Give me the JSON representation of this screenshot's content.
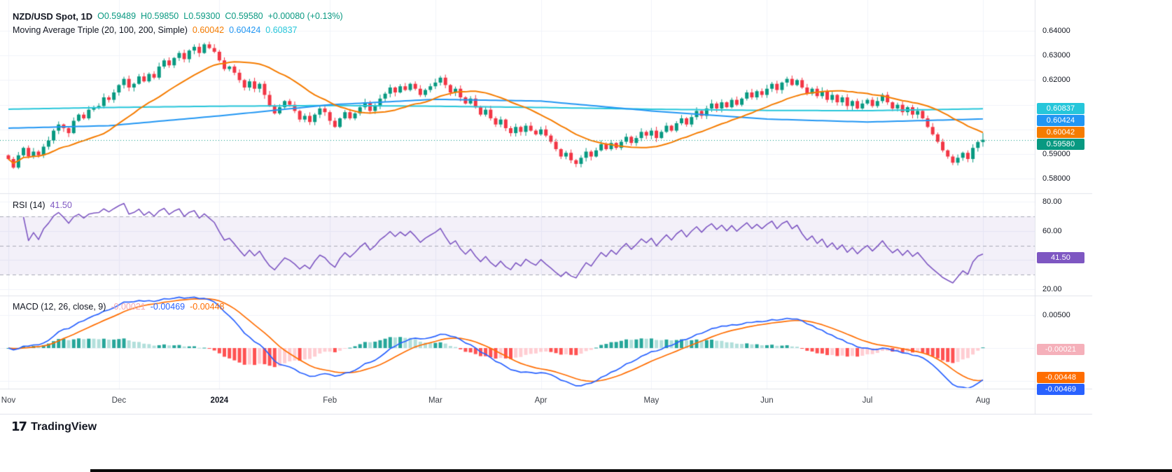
{
  "header": {
    "symbol": "NZD/USD Spot, 1D",
    "o": "O0.59489",
    "h": "H0.59850",
    "l": "L0.59300",
    "c": "C0.59580",
    "change": "+0.00080 (+0.13%)",
    "ma_title": "Moving Average Triple (20, 100, 200, Simple)",
    "ma20": "0.60042",
    "ma100": "0.60424",
    "ma200": "0.60837"
  },
  "rsi_pane": {
    "title": "RSI (14)",
    "value": "41.50"
  },
  "macd_pane": {
    "title": "MACD (12, 26, close, 9)",
    "hist": "-0.00021",
    "macd": "-0.00469",
    "signal": "-0.00448"
  },
  "price_axis": {
    "ticks": [
      {
        "label": "0.64000",
        "v": 0.64
      },
      {
        "label": "0.63000",
        "v": 0.63
      },
      {
        "label": "0.62000",
        "v": 0.62
      },
      {
        "label": "0.59000",
        "v": 0.59
      },
      {
        "label": "0.58000",
        "v": 0.58
      }
    ],
    "badges": [
      {
        "label": "0.60837",
        "v": 0.60837,
        "bg": "#26c6da"
      },
      {
        "label": "0.60424",
        "v": 0.60424,
        "bg": "#2196f3"
      },
      {
        "label": "0.60042",
        "v": 0.60042,
        "bg": "#f57c00"
      },
      {
        "label": "0.59580",
        "v": 0.5958,
        "bg": "#089981"
      }
    ]
  },
  "rsi_axis": {
    "ticks": [
      {
        "label": "80.00",
        "v": 80
      },
      {
        "label": "60.00",
        "v": 60
      },
      {
        "label": "20.00",
        "v": 20
      }
    ],
    "badges": [
      {
        "label": "41.50",
        "v": 41.5,
        "bg": "#7e57c2"
      }
    ]
  },
  "macd_axis": {
    "ticks": [
      {
        "label": "0.00500",
        "v": 0.005
      }
    ],
    "badges": [
      {
        "label": "-0.00021",
        "v": -0.00021,
        "bg": "#f5b0ba"
      },
      {
        "label": "-0.00448",
        "v": -0.00448,
        "bg": "#ff6d00"
      },
      {
        "label": "-0.00469",
        "v": -0.00469,
        "bg": "#2962ff"
      }
    ]
  },
  "time_axis": {
    "labels": [
      {
        "label": "Nov",
        "bar": 0
      },
      {
        "label": "Dec",
        "bar": 22
      },
      {
        "label": "2024",
        "bar": 42,
        "bold": true
      },
      {
        "label": "Feb",
        "bar": 64
      },
      {
        "label": "Mar",
        "bar": 85
      },
      {
        "label": "Apr",
        "bar": 106
      },
      {
        "label": "May",
        "bar": 128
      },
      {
        "label": "Jun",
        "bar": 151
      },
      {
        "label": "Jul",
        "bar": 171
      },
      {
        "label": "Aug",
        "bar": 194
      }
    ]
  },
  "logo": {
    "icon": "17",
    "text": "TradingView"
  },
  "colors": {
    "up": "#089981",
    "down": "#f23645",
    "ma20": "#f57c00",
    "ma100": "#2196f3",
    "ma200": "#26c6da",
    "rsi": "#7e57c2",
    "rsi_band": "rgba(126,87,194,0.09)",
    "rsi_dash": "#a9abb7",
    "macd_line": "#2962ff",
    "signal_line": "#ff6d00",
    "hist_grow_above": "#26a69a",
    "hist_fall_above": "#b2dfdb",
    "hist_grow_below": "#ffcdd2",
    "hist_fall_below": "#ff5252",
    "grid": "#f0f3fa",
    "separator": "#e0e3eb",
    "text": "#131722"
  },
  "chart_data": {
    "type": "candlestick",
    "symbol": "NZD/USD Spot",
    "timeframe": "1D",
    "x_range": [
      "Nov 2023",
      "Aug 2024"
    ],
    "price_ylim": [
      0.576,
      0.65
    ],
    "current_price": 0.5958,
    "last_candle": {
      "open": 0.59489,
      "high": 0.5985,
      "low": 0.593,
      "close": 0.5958
    },
    "closes": [
      0.588,
      0.5845,
      0.5895,
      0.5925,
      0.589,
      0.591,
      0.5895,
      0.593,
      0.5955,
      0.5995,
      0.602,
      0.6005,
      0.5985,
      0.6035,
      0.606,
      0.6045,
      0.608,
      0.609,
      0.6095,
      0.613,
      0.612,
      0.615,
      0.618,
      0.6205,
      0.617,
      0.6185,
      0.6215,
      0.6195,
      0.6225,
      0.621,
      0.6255,
      0.628,
      0.626,
      0.629,
      0.631,
      0.6285,
      0.632,
      0.6335,
      0.631,
      0.6345,
      0.633,
      0.6315,
      0.628,
      0.6245,
      0.6255,
      0.623,
      0.62,
      0.617,
      0.6195,
      0.6165,
      0.6185,
      0.614,
      0.6095,
      0.6065,
      0.609,
      0.6115,
      0.61,
      0.6075,
      0.604,
      0.6055,
      0.603,
      0.606,
      0.6085,
      0.607,
      0.6035,
      0.601,
      0.6045,
      0.607,
      0.6045,
      0.6065,
      0.609,
      0.611,
      0.6075,
      0.6095,
      0.6125,
      0.6145,
      0.617,
      0.615,
      0.6175,
      0.616,
      0.6185,
      0.6165,
      0.614,
      0.616,
      0.6175,
      0.619,
      0.621,
      0.618,
      0.615,
      0.6165,
      0.613,
      0.6105,
      0.6125,
      0.609,
      0.606,
      0.608,
      0.6045,
      0.602,
      0.604,
      0.6005,
      0.5985,
      0.601,
      0.599,
      0.6015,
      0.5995,
      0.598,
      0.6,
      0.5975,
      0.595,
      0.592,
      0.589,
      0.5905,
      0.5875,
      0.586,
      0.5885,
      0.591,
      0.589,
      0.5915,
      0.594,
      0.592,
      0.5945,
      0.5925,
      0.595,
      0.597,
      0.5945,
      0.5965,
      0.599,
      0.5975,
      0.5995,
      0.5965,
      0.599,
      0.6015,
      0.5995,
      0.6025,
      0.6045,
      0.602,
      0.605,
      0.6075,
      0.6055,
      0.6085,
      0.6105,
      0.6085,
      0.611,
      0.609,
      0.612,
      0.61,
      0.6125,
      0.615,
      0.613,
      0.6155,
      0.614,
      0.6165,
      0.6185,
      0.616,
      0.619,
      0.6205,
      0.618,
      0.62,
      0.617,
      0.6145,
      0.6165,
      0.6135,
      0.6155,
      0.612,
      0.614,
      0.611,
      0.613,
      0.6095,
      0.6115,
      0.6085,
      0.6105,
      0.612,
      0.6095,
      0.6115,
      0.614,
      0.611,
      0.6085,
      0.61,
      0.607,
      0.609,
      0.606,
      0.6075,
      0.6045,
      0.601,
      0.598,
      0.595,
      0.5915,
      0.589,
      0.5865,
      0.5885,
      0.5905,
      0.588,
      0.5925,
      0.5949,
      0.5958
    ],
    "overlays": {
      "sma20": {
        "period": 20,
        "current": 0.60042
      },
      "sma100": {
        "period": 100,
        "current": 0.60424,
        "anchors": {
          "bars": [
            0,
            20,
            42,
            64,
            85,
            106,
            128,
            151,
            171,
            194
          ],
          "values": [
            0.6005,
            0.6015,
            0.6055,
            0.61,
            0.6122,
            0.6115,
            0.6075,
            0.6042,
            0.603,
            0.60424
          ]
        }
      },
      "sma200": {
        "period": 200,
        "current": 0.60837,
        "anchors": {
          "bars": [
            0,
            20,
            42,
            64,
            85,
            106,
            128,
            151,
            171,
            194
          ],
          "values": [
            0.6082,
            0.6089,
            0.6094,
            0.6097,
            0.6094,
            0.6089,
            0.6082,
            0.6077,
            0.6076,
            0.60837
          ]
        }
      }
    },
    "rsi": {
      "period": 14,
      "current": 41.5,
      "ylim": [
        16,
        85
      ],
      "bands": [
        30,
        50,
        70
      ]
    },
    "macd": {
      "fast": 12,
      "slow": 26,
      "signal": 9,
      "ylim": [
        -0.0061,
        0.0079
      ],
      "current": {
        "hist": -0.00021,
        "macd": -0.00469,
        "signal": -0.00448
      }
    }
  }
}
